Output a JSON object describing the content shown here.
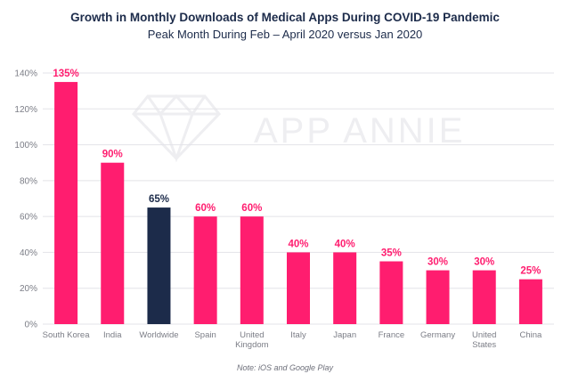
{
  "chart_data": {
    "type": "bar",
    "title": "Growth in Monthly Downloads of Medical Apps During COVID-19 Pandemic",
    "subtitle": "Peak Month During Feb – April 2020 versus Jan 2020",
    "categories": [
      "South Korea",
      "India",
      "Worldwide",
      "Spain",
      "United Kingdom",
      "Italy",
      "Japan",
      "France",
      "Germany",
      "United States",
      "China"
    ],
    "category_lines": [
      [
        "South Korea"
      ],
      [
        "India"
      ],
      [
        "Worldwide"
      ],
      [
        "Spain"
      ],
      [
        "United",
        "Kingdom"
      ],
      [
        "Italy"
      ],
      [
        "Japan"
      ],
      [
        "France"
      ],
      [
        "Germany"
      ],
      [
        "United",
        "States"
      ],
      [
        "China"
      ]
    ],
    "values": [
      135,
      90,
      65,
      60,
      60,
      40,
      40,
      35,
      30,
      30,
      25
    ],
    "value_labels": [
      "135%",
      "90%",
      "65%",
      "60%",
      "60%",
      "40%",
      "40%",
      "35%",
      "30%",
      "30%",
      "25%"
    ],
    "highlight_index": 2,
    "ylim": [
      0,
      140
    ],
    "yticks": [
      0,
      20,
      40,
      60,
      80,
      100,
      120,
      140
    ],
    "ytick_labels": [
      "0%",
      "20%",
      "40%",
      "60%",
      "80%",
      "100%",
      "120%",
      "140%"
    ],
    "xlabel": "",
    "ylabel": "",
    "grid": true,
    "colors": {
      "bar": "#ff1d6f",
      "highlight": "#1c2b4a",
      "grid": "#e3e3e8",
      "tick": "#7b7d86"
    }
  },
  "watermark": "APP ANNIE",
  "note": "Note: iOS and Google Play"
}
